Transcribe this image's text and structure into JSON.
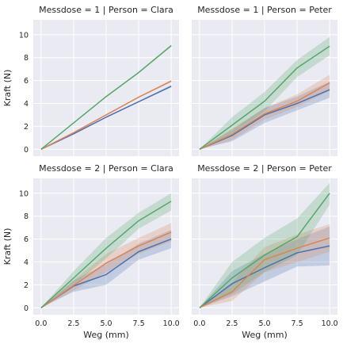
{
  "chart_data": {
    "type": "line",
    "x": [
      0,
      2.5,
      5,
      7.5,
      10
    ],
    "xticks": [
      0.0,
      2.5,
      5.0,
      7.5,
      10.0
    ],
    "xtick_labels": [
      "0.0",
      "2.5",
      "5.0",
      "7.5",
      "10.0"
    ],
    "yticks": [
      0,
      2,
      4,
      6,
      8,
      10
    ],
    "yticks_labels": [
      "0",
      "2",
      "4",
      "6",
      "8",
      "10"
    ],
    "xlim": [
      -0.6,
      10.6
    ],
    "ylim": [
      -0.6,
      11.3
    ],
    "xlabel": "Weg (mm)",
    "ylabel": "Kraft (N)",
    "grid": true,
    "colors": [
      "#4c72b0",
      "#dd8452",
      "#55a868"
    ],
    "panels": [
      {
        "title": "Messdose = 1 | Person = Clara",
        "series": [
          {
            "values": [
              0,
              1.35,
              2.8,
              4.15,
              5.5
            ],
            "lower": [
              0,
              1.3,
              2.75,
              4.1,
              5.4
            ],
            "upper": [
              0,
              1.4,
              2.85,
              4.2,
              5.6
            ]
          },
          {
            "values": [
              0,
              1.45,
              3.0,
              4.55,
              5.95
            ],
            "lower": [
              0,
              1.4,
              2.95,
              4.5,
              5.85
            ],
            "upper": [
              0,
              1.5,
              3.05,
              4.6,
              6.05
            ]
          },
          {
            "values": [
              0,
              2.3,
              4.6,
              6.7,
              9.05
            ],
            "lower": [
              0,
              2.25,
              4.55,
              6.65,
              8.95
            ],
            "upper": [
              0,
              2.35,
              4.65,
              6.75,
              9.15
            ]
          }
        ]
      },
      {
        "title": "Messdose = 1 | Person = Peter",
        "series": [
          {
            "values": [
              0,
              1.2,
              3.0,
              4.0,
              5.2
            ],
            "lower": [
              0,
              0.7,
              2.3,
              3.4,
              4.5
            ],
            "upper": [
              0,
              1.7,
              3.6,
              4.6,
              5.9
            ]
          },
          {
            "values": [
              0,
              1.3,
              3.1,
              4.2,
              5.8
            ],
            "lower": [
              0,
              0.8,
              2.6,
              3.7,
              5.1
            ],
            "upper": [
              0,
              1.8,
              3.6,
              4.8,
              6.5
            ]
          },
          {
            "values": [
              0,
              2.1,
              4.2,
              7.1,
              9.0
            ],
            "lower": [
              0,
              1.4,
              3.3,
              6.3,
              8.2
            ],
            "upper": [
              0,
              2.8,
              5.0,
              7.8,
              9.8
            ]
          }
        ]
      },
      {
        "title": "Messdose = 2 | Person = Clara",
        "series": [
          {
            "values": [
              0,
              1.9,
              2.9,
              4.9,
              6.0
            ],
            "lower": [
              0,
              1.4,
              2.0,
              4.2,
              5.2
            ],
            "upper": [
              0,
              2.4,
              3.8,
              5.6,
              6.8
            ]
          },
          {
            "values": [
              0,
              1.95,
              3.9,
              5.4,
              6.6
            ],
            "lower": [
              0,
              1.5,
              3.1,
              4.7,
              5.8
            ],
            "upper": [
              0,
              2.4,
              4.7,
              6.1,
              7.4
            ]
          },
          {
            "values": [
              0,
              2.6,
              5.2,
              7.6,
              9.3
            ],
            "lower": [
              0,
              2.0,
              4.3,
              6.9,
              8.5
            ],
            "upper": [
              0,
              3.2,
              6.1,
              8.3,
              10.0
            ]
          }
        ]
      },
      {
        "title": "Messdose = 2 | Person = Peter",
        "series": [
          {
            "values": [
              0,
              2.1,
              3.5,
              4.8,
              5.4
            ],
            "lower": [
              0,
              1.0,
              2.3,
              3.6,
              3.7
            ],
            "upper": [
              0,
              3.2,
              4.7,
              6.0,
              7.1
            ]
          },
          {
            "values": [
              0,
              1.4,
              4.2,
              5.2,
              6.1
            ],
            "lower": [
              0,
              0.6,
              3.1,
              4.0,
              4.9
            ],
            "upper": [
              0,
              2.2,
              5.3,
              6.4,
              7.3
            ]
          },
          {
            "values": [
              0,
              2.6,
              4.6,
              6.2,
              10.0
            ],
            "lower": [
              0,
              1.2,
              3.1,
              4.6,
              9.0
            ],
            "upper": [
              0,
              4.0,
              6.1,
              7.8,
              10.9
            ]
          }
        ]
      }
    ]
  }
}
